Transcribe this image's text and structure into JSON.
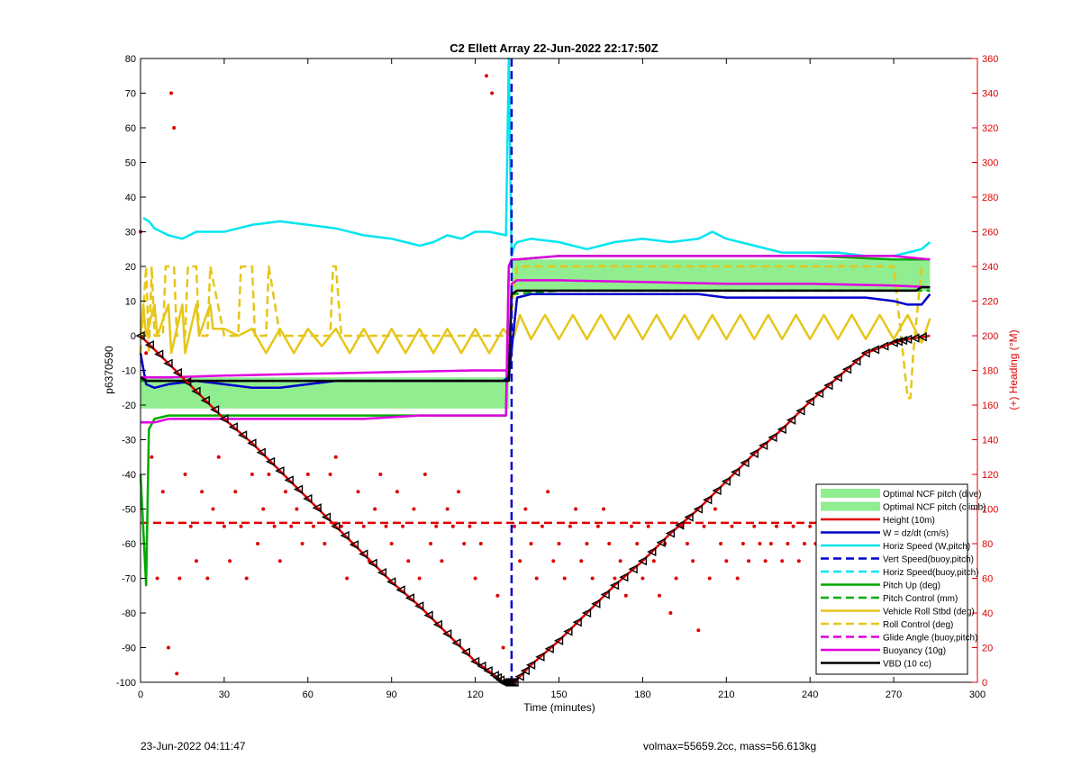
{
  "chart_data": {
    "type": "line",
    "title": "C2 Ellett Array 22-Jun-2022 22:17:50Z",
    "xlabel": "Time (minutes)",
    "ylabel": "p6370590",
    "y2label": "(+) Heading (°M)",
    "xlim": [
      0,
      300
    ],
    "ylim": [
      -100,
      80
    ],
    "y2lim": [
      0,
      360
    ],
    "xticks": [
      0,
      30,
      60,
      90,
      120,
      150,
      180,
      210,
      240,
      270,
      300
    ],
    "yticks": [
      -100,
      -90,
      -80,
      -70,
      -60,
      -50,
      -40,
      -30,
      -20,
      -10,
      0,
      10,
      20,
      30,
      40,
      50,
      60,
      70,
      80
    ],
    "y2ticks": [
      0,
      20,
      40,
      60,
      80,
      100,
      120,
      140,
      160,
      180,
      200,
      220,
      240,
      260,
      280,
      300,
      320,
      340,
      360
    ],
    "grid": false,
    "legend_position": "lower-right",
    "colors": {
      "ncf": "#90EE90",
      "height": "#e00000",
      "wspeed": "#0000cc",
      "hspeed": "#00e5ee",
      "pitch": "#00aa00",
      "roll": "#e6c619",
      "glide": "#e000e0",
      "black": "#000000",
      "heading_axis": "#e00000"
    },
    "legend": [
      {
        "label": "Optimal NCF pitch (dive)",
        "style": "patch",
        "color": "#90EE90"
      },
      {
        "label": "Optimal NCF pitch (climb)",
        "style": "patch",
        "color": "#90EE90"
      },
      {
        "label": "Height (10m)",
        "style": "solid",
        "color": "#e00000"
      },
      {
        "label": "W = dz/dt (cm/s)",
        "style": "solid",
        "color": "#0000cc"
      },
      {
        "label": "Horiz Speed (W,pitch)",
        "style": "solid",
        "color": "#00e5ee"
      },
      {
        "label": "Vert Speed(buoy,pitch)",
        "style": "dashed",
        "color": "#0000cc"
      },
      {
        "label": "Horiz Speed(buoy,pitch)",
        "style": "dashed",
        "color": "#00e5ee"
      },
      {
        "label": "Pitch Up (deg)",
        "style": "solid",
        "color": "#00aa00"
      },
      {
        "label": "Pitch Control (mm)",
        "style": "dashed",
        "color": "#00aa00"
      },
      {
        "label": "Vehicle Roll Stbd (deg)",
        "style": "solid",
        "color": "#e6c619"
      },
      {
        "label": "Roll Control (deg)",
        "style": "dashed",
        "color": "#e6c619"
      },
      {
        "label": "Glide Angle (buoy,pitch)",
        "style": "dashed",
        "color": "#e000e0"
      },
      {
        "label": "Buoyancy (10g)",
        "style": "solid",
        "color": "#e000e0"
      },
      {
        "label": "VBD (10 cc)",
        "style": "solid",
        "color": "#000000"
      }
    ],
    "ncf_band": {
      "dive": {
        "x": [
          0,
          132
        ],
        "y": [
          -21,
          -12
        ]
      },
      "climb": {
        "x": [
          133,
          283
        ],
        "y": [
          13,
          22
        ]
      }
    },
    "series": [
      {
        "name": "Height (10m)",
        "style": "solid-markers",
        "color": "#e00000",
        "x": [
          0,
          10,
          20,
          30,
          40,
          50,
          60,
          70,
          80,
          90,
          100,
          110,
          120,
          127,
          130,
          132,
          134,
          140,
          150,
          160,
          170,
          180,
          190,
          200,
          210,
          220,
          230,
          240,
          250,
          260,
          270,
          275,
          283
        ],
        "y": [
          0,
          -8,
          -16,
          -24,
          -31,
          -39,
          -47,
          -55,
          -63,
          -71,
          -78,
          -86,
          -94,
          -98,
          -100,
          -100,
          -100,
          -95,
          -88,
          -80,
          -72,
          -65,
          -57,
          -50,
          -42,
          -34,
          -27,
          -19,
          -12,
          -5,
          -2,
          -1,
          0
        ]
      },
      {
        "name": "W = dz/dt (cm/s)",
        "style": "solid",
        "color": "#0000cc",
        "x": [
          0,
          2,
          5,
          10,
          20,
          30,
          40,
          50,
          60,
          70,
          80,
          90,
          100,
          110,
          120,
          130,
          132,
          135,
          140,
          150,
          160,
          170,
          180,
          190,
          200,
          210,
          220,
          230,
          240,
          250,
          260,
          270,
          275,
          280,
          283
        ],
        "y": [
          -5,
          -14,
          -15,
          -14,
          -13,
          -14,
          -15,
          -15,
          -14,
          -13,
          -13,
          -13,
          -13,
          -13,
          -13,
          -13,
          -12,
          11,
          12,
          12,
          12,
          12,
          12,
          12,
          12,
          11,
          11,
          11,
          11,
          11,
          11,
          10,
          9,
          9,
          12
        ]
      },
      {
        "name": "Horiz Speed (W,pitch)",
        "style": "solid",
        "color": "#00e5ee",
        "x": [
          1,
          3,
          5,
          10,
          15,
          20,
          30,
          40,
          50,
          60,
          70,
          80,
          90,
          95,
          100,
          105,
          110,
          115,
          120,
          125,
          131,
          132,
          133,
          134,
          135,
          140,
          150,
          160,
          170,
          180,
          190,
          200,
          205,
          210,
          220,
          230,
          240,
          250,
          260,
          270,
          275,
          280,
          283
        ],
        "y": [
          34,
          33,
          31,
          29,
          28,
          30,
          30,
          32,
          33,
          32,
          31,
          29,
          28,
          27,
          26,
          27,
          29,
          28,
          30,
          30,
          29,
          80,
          23,
          26,
          27,
          28,
          27,
          25,
          27,
          28,
          27,
          28,
          30,
          28,
          26,
          24,
          24,
          24,
          23,
          23,
          24,
          25,
          27
        ]
      },
      {
        "name": "Pitch Up (deg)",
        "style": "solid",
        "color": "#00aa00",
        "x": [
          0,
          2,
          3,
          5,
          10,
          20,
          40,
          60,
          80,
          100,
          120,
          131,
          132,
          133,
          135,
          150,
          180,
          210,
          240,
          270,
          280,
          283
        ],
        "y": [
          -40,
          -72,
          -27,
          -24,
          -23,
          -23,
          -23,
          -23,
          -23,
          -23,
          -23,
          -23,
          20,
          22,
          22,
          23,
          23,
          23,
          23,
          22,
          22,
          22
        ]
      },
      {
        "name": "Glide Angle (buoy,pitch)",
        "style": "solid",
        "color": "#e000e0",
        "x": [
          0,
          5,
          10,
          20,
          40,
          60,
          80,
          100,
          120,
          131,
          132,
          133,
          135,
          150,
          180,
          210,
          240,
          270,
          283
        ],
        "y": [
          -25,
          -25,
          -24,
          -24,
          -24,
          -24,
          -24,
          -23,
          -23,
          -23,
          20,
          22,
          22,
          23,
          23,
          23,
          23,
          23,
          22
        ]
      },
      {
        "name": "Buoyancy (10g)",
        "style": "solid",
        "color": "#e000e0",
        "x": [
          0,
          2,
          5,
          10,
          30,
          60,
          90,
          120,
          132,
          133,
          135,
          150,
          180,
          210,
          240,
          270,
          283
        ],
        "y": [
          -12,
          -12,
          -12,
          -12,
          -11.5,
          -11,
          -10.5,
          -10,
          -10,
          15,
          16,
          16,
          15.5,
          15,
          15,
          14.5,
          14
        ]
      },
      {
        "name": "VBD (10 cc)",
        "style": "solid",
        "color": "#000000",
        "x": [
          0,
          2,
          5,
          30,
          60,
          90,
          120,
          132,
          133,
          135,
          150,
          180,
          210,
          240,
          270,
          278,
          280,
          283
        ],
        "y": [
          -12,
          -13,
          -13,
          -13,
          -13,
          -13,
          -13,
          -13,
          12,
          13,
          13,
          13,
          13,
          13,
          13,
          13,
          14,
          14
        ]
      },
      {
        "name": "Vert Speed(buoy,pitch)",
        "style": "dashed",
        "color": "#0000cc",
        "x": [
          133,
          133,
          133
        ],
        "y": [
          80,
          -10,
          -100
        ]
      },
      {
        "name": "Pitch Control (mm)",
        "style": "dashed",
        "color": "#00aa00",
        "x": [
          0,
          10,
          60,
          120,
          132,
          133,
          150,
          210,
          270,
          283
        ],
        "y": [
          -13,
          -13,
          -13,
          -13,
          -13,
          12,
          13,
          13,
          13,
          13
        ]
      },
      {
        "name": "Roll Control (deg)",
        "style": "dashed",
        "color": "#e6c619",
        "x": [
          0,
          2,
          3,
          4,
          5,
          8,
          9,
          12,
          13,
          16,
          17,
          20,
          21,
          24,
          25,
          30,
          35,
          36,
          40,
          41,
          45,
          46,
          50,
          68,
          69,
          70,
          72,
          90,
          95,
          100,
          110,
          120,
          125,
          132,
          135,
          140,
          150,
          160,
          180,
          200,
          220,
          240,
          260,
          270,
          275,
          276,
          277,
          280
        ],
        "y": [
          -5,
          20,
          -5,
          20,
          0,
          0,
          20,
          20,
          0,
          0,
          20,
          20,
          0,
          0,
          20,
          0,
          0,
          20,
          20,
          0,
          0,
          20,
          0,
          0,
          20,
          20,
          0,
          0,
          0,
          0,
          0,
          0,
          0,
          0,
          20,
          20,
          20,
          20,
          20,
          20,
          20,
          20,
          20,
          20,
          -18,
          -18,
          -5,
          20
        ]
      },
      {
        "name": "Vehicle Roll Stbd (deg)",
        "style": "solid",
        "color": "#e6c619",
        "x": [
          0,
          1,
          2,
          5,
          6,
          10,
          11,
          15,
          16,
          20,
          21,
          25,
          26,
          30,
          35,
          40,
          45,
          50,
          55,
          60,
          65,
          70,
          75,
          80,
          85,
          90,
          95,
          100,
          105,
          110,
          115,
          120,
          125,
          130,
          132,
          134,
          136,
          140,
          145,
          150,
          155,
          160,
          165,
          170,
          175,
          180,
          185,
          190,
          195,
          200,
          205,
          210,
          215,
          220,
          225,
          230,
          235,
          240,
          245,
          250,
          255,
          260,
          265,
          270,
          275,
          280,
          283
        ],
        "y": [
          0,
          9,
          0,
          9,
          0,
          9,
          -5,
          9,
          -5,
          9,
          0,
          9,
          2,
          2,
          0,
          2,
          -5,
          2,
          -5,
          2,
          -3,
          2,
          -5,
          2,
          -5,
          2,
          -5,
          2,
          -5,
          2,
          -5,
          2,
          -5,
          2,
          0,
          0,
          6,
          -1,
          6,
          -1,
          6,
          -1,
          6,
          -1,
          6,
          -1,
          6,
          -1,
          6,
          -1,
          6,
          -1,
          6,
          -1,
          6,
          -1,
          6,
          -1,
          6,
          -1,
          6,
          -1,
          6,
          -1,
          6,
          -2,
          5
        ]
      },
      {
        "name": "Heading",
        "axis": "right",
        "style": "dots",
        "color": "#e00000",
        "x": [
          0,
          2,
          4,
          6,
          8,
          10,
          11,
          12,
          13,
          14,
          16,
          18,
          20,
          22,
          24,
          26,
          28,
          30,
          32,
          34,
          36,
          38,
          40,
          42,
          44,
          46,
          48,
          50,
          52,
          54,
          56,
          58,
          60,
          62,
          64,
          66,
          68,
          70,
          72,
          74,
          76,
          78,
          80,
          82,
          84,
          86,
          88,
          90,
          92,
          94,
          96,
          98,
          100,
          102,
          104,
          106,
          108,
          110,
          112,
          114,
          116,
          118,
          120,
          122,
          124,
          126,
          128,
          130,
          134,
          136,
          138,
          140,
          142,
          144,
          146,
          148,
          150,
          152,
          154,
          156,
          158,
          160,
          162,
          164,
          166,
          168,
          170,
          172,
          174,
          176,
          178,
          180,
          182,
          184,
          186,
          188,
          190,
          192,
          194,
          196,
          198,
          200,
          202,
          204,
          206,
          208,
          210,
          212,
          214,
          216,
          218,
          220,
          222,
          224,
          226,
          228,
          230,
          232,
          234,
          236,
          238,
          240,
          242,
          244,
          246,
          248,
          250,
          252,
          254,
          256,
          258,
          260,
          262,
          264,
          266,
          268,
          270,
          272,
          274,
          276,
          278,
          280,
          282
        ],
        "y": [
          260,
          190,
          130,
          60,
          110,
          20,
          340,
          320,
          5,
          60,
          120,
          90,
          70,
          110,
          60,
          100,
          130,
          90,
          70,
          110,
          90,
          60,
          120,
          80,
          100,
          120,
          90,
          70,
          110,
          90,
          100,
          80,
          120,
          90,
          100,
          80,
          120,
          130,
          90,
          60,
          80,
          110,
          90,
          70,
          100,
          120,
          90,
          80,
          110,
          90,
          70,
          100,
          60,
          120,
          80,
          90,
          70,
          100,
          90,
          110,
          80,
          90,
          60,
          80,
          350,
          340,
          50,
          20,
          90,
          70,
          100,
          80,
          60,
          90,
          110,
          70,
          80,
          60,
          90,
          100,
          70,
          80,
          60,
          90,
          100,
          80,
          60,
          70,
          50,
          90,
          80,
          60,
          90,
          70,
          50,
          80,
          40,
          60,
          90,
          80,
          70,
          30,
          90,
          60,
          100,
          80,
          70,
          90,
          60,
          80,
          70,
          90,
          80,
          70,
          80,
          90,
          70,
          80,
          90,
          70,
          80,
          90,
          80,
          70,
          85,
          75,
          90,
          80,
          70,
          90,
          80,
          85,
          75,
          90,
          80,
          70,
          85,
          80,
          90,
          80,
          100,
          110,
          80
        ]
      },
      {
        "name": "Heading target",
        "axis": "right",
        "style": "dashed",
        "color": "#e00000",
        "x": [
          0,
          283
        ],
        "y": [
          92,
          92
        ]
      }
    ]
  },
  "footer": {
    "left": "23-Jun-2022 04:11:47",
    "right": "volmax=55659.2cc, mass=56.613kg"
  }
}
